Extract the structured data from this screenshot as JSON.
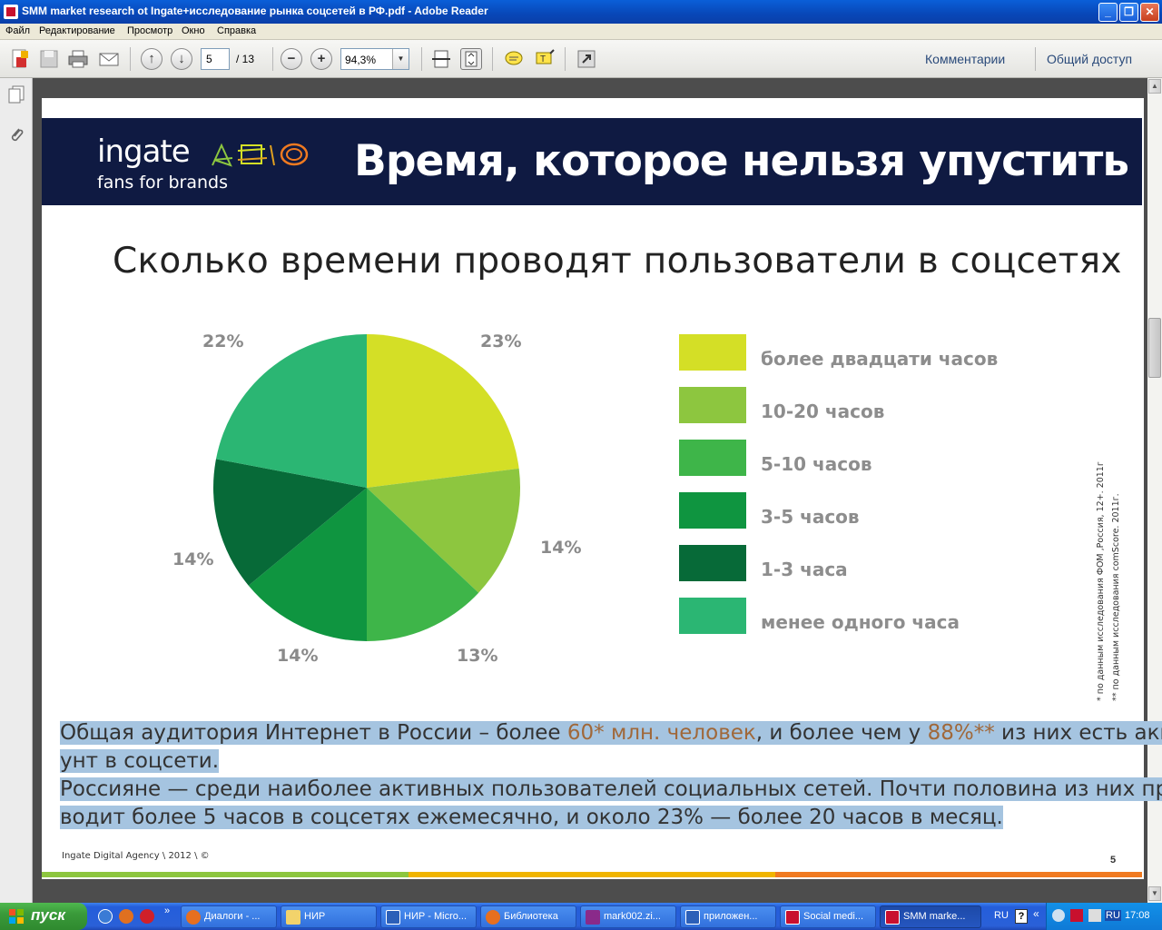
{
  "window": {
    "title": "SMM market research ot Ingate+исследование рынка соцсетей в РФ.pdf - Adobe Reader",
    "minimize": "_",
    "maximize": "❐",
    "close": "✕"
  },
  "menu": [
    "Файл",
    "Редактирование",
    "Просмотр",
    "Окно",
    "Справка"
  ],
  "toolbar": {
    "page_value": "5",
    "page_total": "/ 13",
    "zoom_value": "94,3%",
    "zoom_out": "−",
    "zoom_in": "+",
    "comments_label": "Комментарии",
    "share_label": "Общий доступ"
  },
  "slide": {
    "logo": "ingate",
    "logo_tagline": "fans for brands",
    "banner_title": "Время, которое нельзя упустить",
    "title": "Сколько времени проводят пользователи в соцсетях",
    "pie_labels": [
      "23%",
      "14%",
      "13%",
      "14%",
      "14%",
      "22%"
    ],
    "legend": [
      "более двадцати часов",
      "10-20 часов",
      "5-10 часов",
      "3-5 часов",
      "1-3 часа",
      "менее одного часа"
    ],
    "note1": "* по данным исследования ФОМ ,Россия, 12+. 2011г",
    "note2": "** по данным исследования comScore. 2011г.",
    "para1_line1_a": "Общая аудитория Интернет в России – более ",
    "para1_line1_hl1": "60* млн. человек",
    "para1_line1_b": ", и более чем у ",
    "para1_line1_hl2": "88%**",
    "para1_line1_c": " из них есть акка-",
    "para1_line2": "унт в соцсети.",
    "para2_line1": "Россияне — среди наиболее активных пользователей социальных сетей. Почти половина из них про-",
    "para2_line2": "водит более 5 часов в соцсетях ежемесячно, и около 23% — более 20 часов в месяц.",
    "footer": "Ingate Digital Agency \\ 2012 \\ ©",
    "page_number": "5"
  },
  "chart_data": {
    "type": "pie",
    "categories": [
      "более двадцати часов",
      "10-20 часов",
      "5-10 часов",
      "3-5 часов",
      "1-3 часа",
      "менее одного часа"
    ],
    "values": [
      23,
      14,
      13,
      14,
      14,
      22
    ],
    "title": "Сколько времени проводят пользователи в соцсетях",
    "colors": [
      "#d4df26",
      "#8dc63f",
      "#3eb549",
      "#0f9540",
      "#076a38",
      "#2bb673"
    ],
    "legend_position": "right"
  },
  "taskbar": {
    "start": "пуск",
    "tasks": [
      "Диалоги - ...",
      "НИР",
      "НИР - Micro...",
      "Библиотека",
      "mark002.zi...",
      "приложен...",
      "Social medi...",
      "SMM marke..."
    ],
    "lang": "RU",
    "time": "17:08"
  }
}
